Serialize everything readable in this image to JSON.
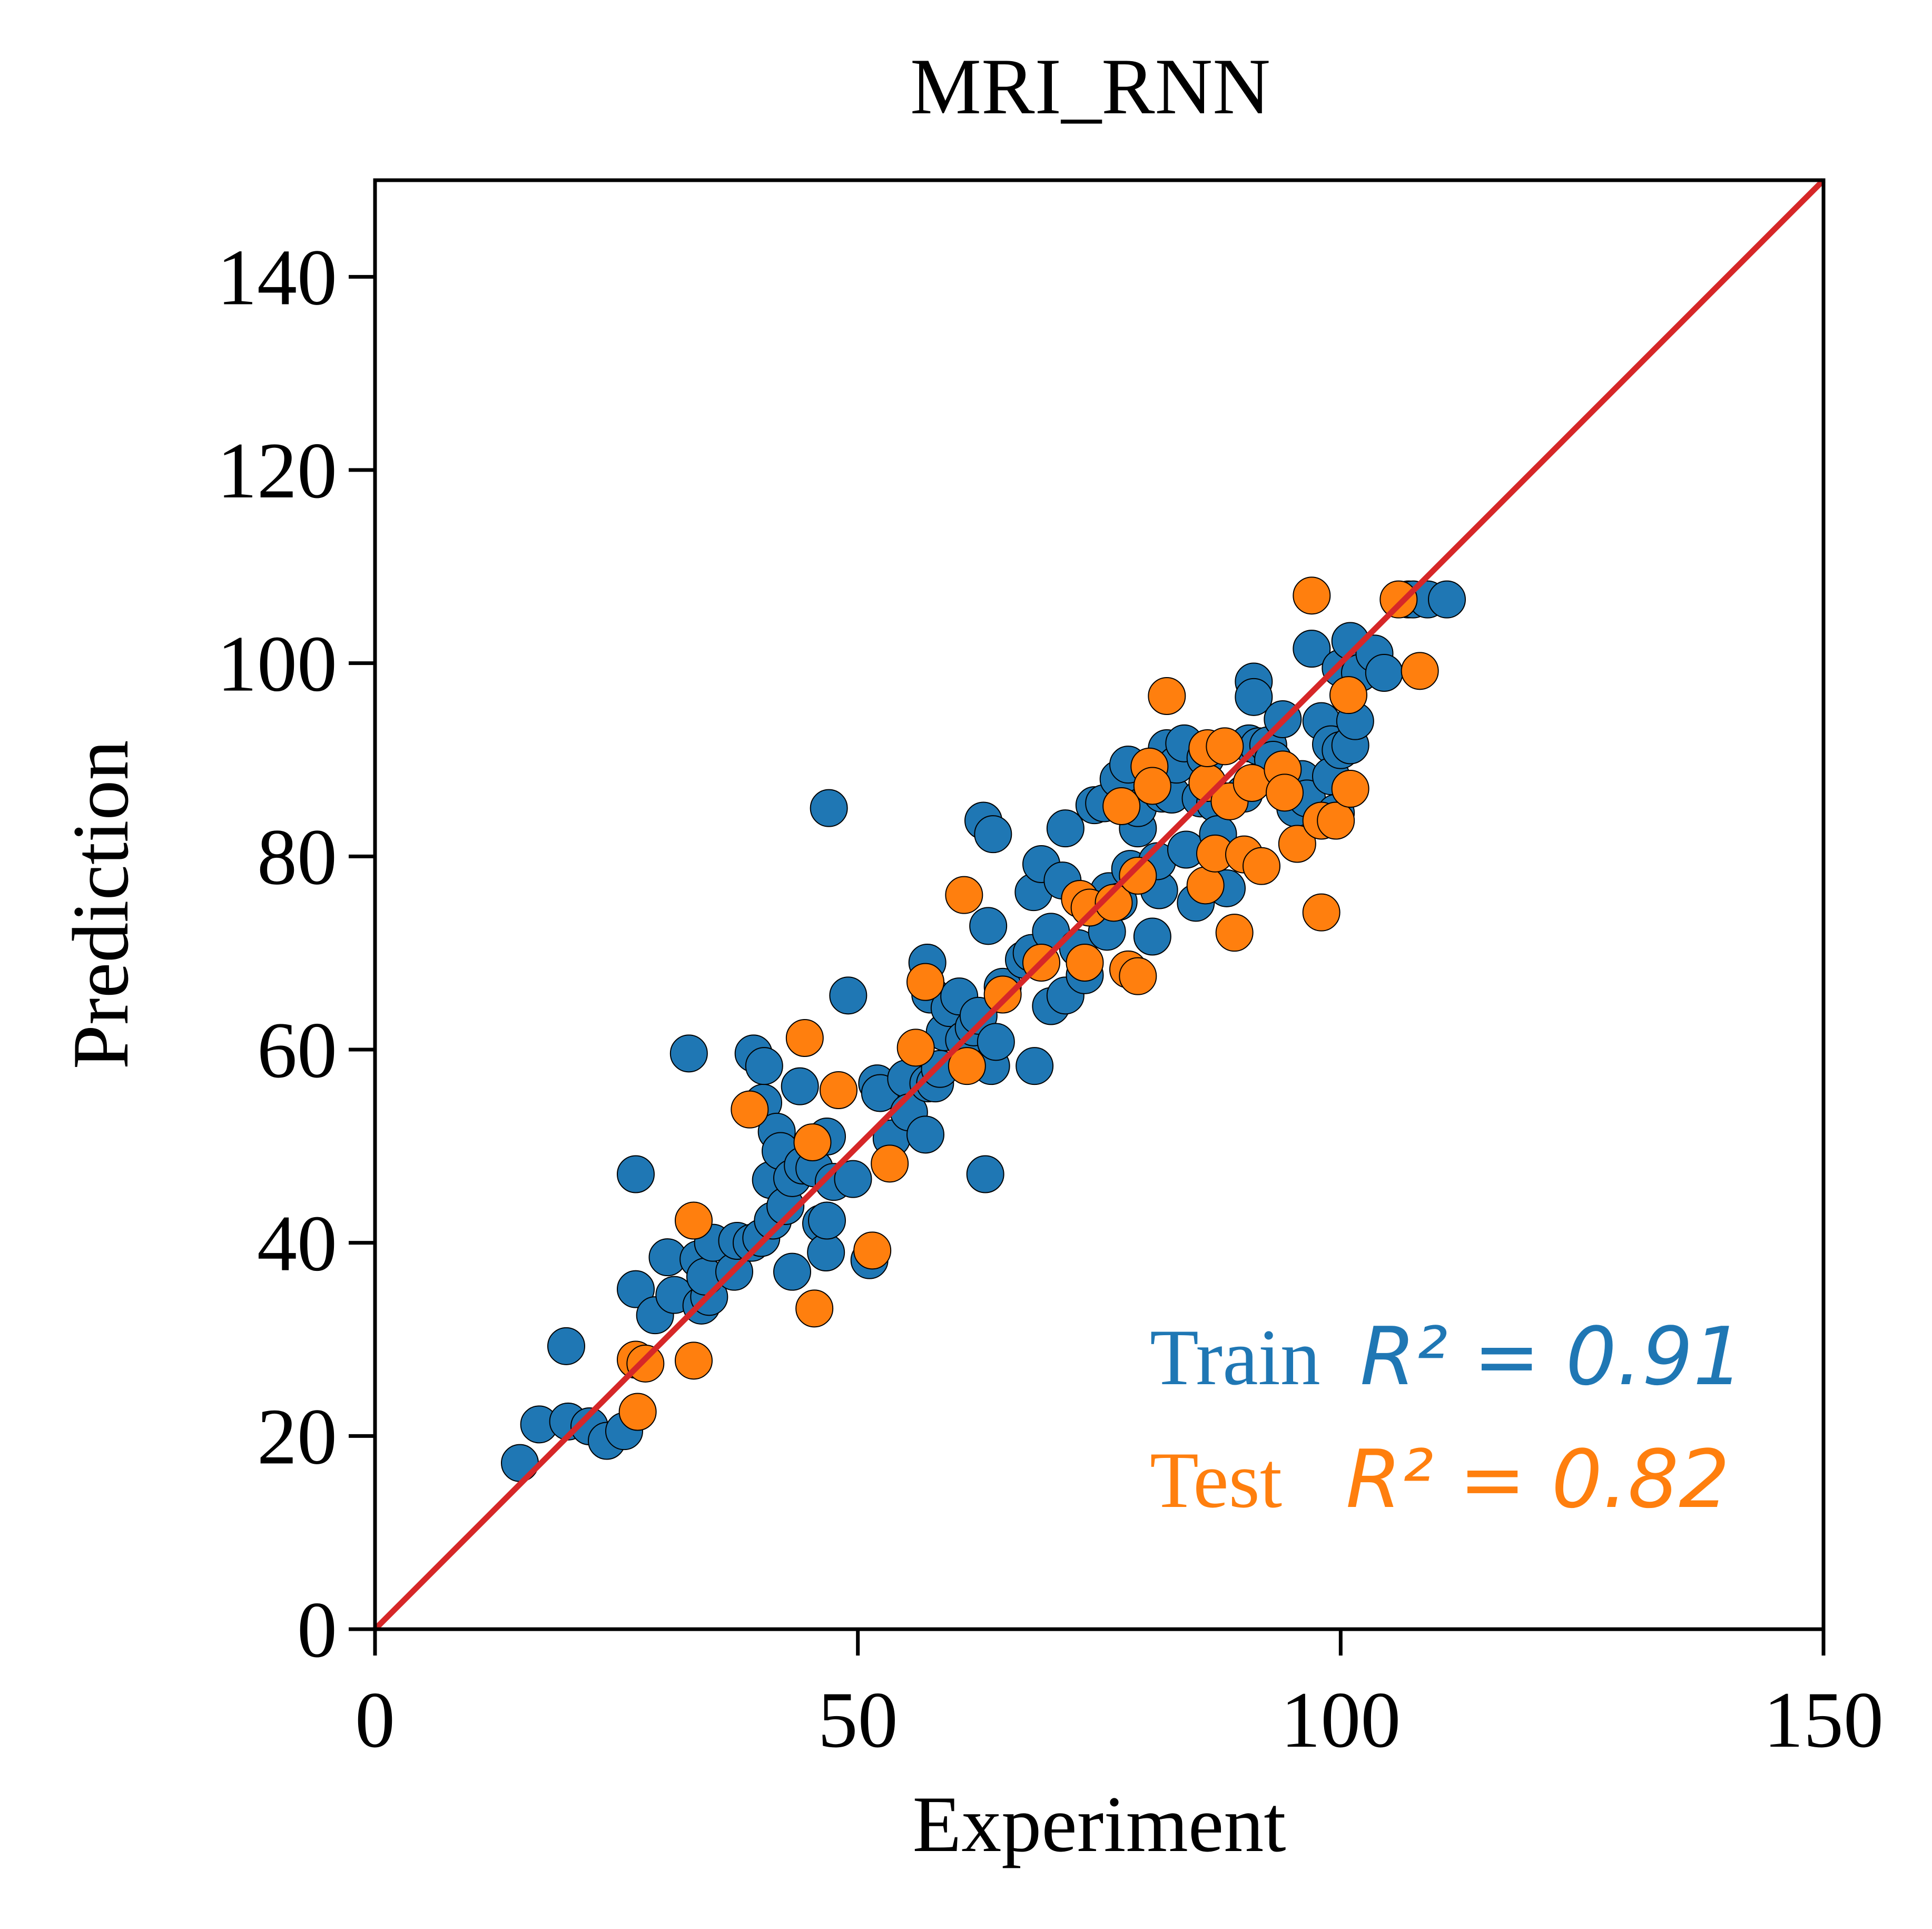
{
  "chart_data": {
    "type": "scatter",
    "title": "MRI_RNN",
    "xlabel": "Experiment",
    "ylabel": "Prediction",
    "xlim": [
      0,
      150
    ],
    "ylim": [
      0,
      150
    ],
    "xticks": [
      0,
      50,
      100,
      150
    ],
    "yticks": [
      0,
      20,
      40,
      60,
      80,
      100,
      120,
      140
    ],
    "grid": false,
    "reference_line": {
      "from": [
        0,
        0
      ],
      "to": [
        150,
        150
      ],
      "color": "#d62728"
    },
    "colors": {
      "train": "#1f77b4",
      "test": "#ff7f0e",
      "reference": "#d62728"
    },
    "annotations": {
      "train_label": "Train",
      "train_metric": "R² = 0.91",
      "test_label": "Test",
      "test_metric": "R² = 0.82"
    },
    "series": [
      {
        "color": "#1f77b4",
        "points": [
          [
            15,
            17.2
          ],
          [
            17,
            21.2
          ],
          [
            19.8,
            29.3
          ],
          [
            20,
            21.5
          ],
          [
            22.2,
            21
          ],
          [
            24,
            19.5
          ],
          [
            25.8,
            20.5
          ],
          [
            27,
            47.1
          ],
          [
            27,
            35.2
          ],
          [
            29,
            32.5
          ],
          [
            30.3,
            38.5
          ],
          [
            31,
            34.6
          ],
          [
            32.5,
            59.6
          ],
          [
            33.5,
            38.3
          ],
          [
            33.8,
            33.5
          ],
          [
            34.6,
            34.4
          ],
          [
            34.2,
            36.5
          ],
          [
            35,
            40
          ],
          [
            37.2,
            37
          ],
          [
            37.5,
            40.2
          ],
          [
            39,
            40
          ],
          [
            39.2,
            59.6
          ],
          [
            40,
            40.5
          ],
          [
            40.2,
            54.5
          ],
          [
            40.3,
            58.3
          ],
          [
            41,
            46.5
          ],
          [
            41.2,
            42.3
          ],
          [
            41.6,
            51.5
          ],
          [
            42,
            49.5
          ],
          [
            42.5,
            43.8
          ],
          [
            43.2,
            37
          ],
          [
            43.2,
            46.7
          ],
          [
            44,
            56.2
          ],
          [
            44.3,
            48
          ],
          [
            45.5,
            47.7
          ],
          [
            46.2,
            42
          ],
          [
            46.7,
            39
          ],
          [
            46.8,
            42.3
          ],
          [
            46.8,
            51
          ],
          [
            47,
            85
          ],
          [
            47.5,
            46.3
          ],
          [
            49,
            65.6
          ],
          [
            49.5,
            46.6
          ],
          [
            51.2,
            38.2
          ],
          [
            52,
            56.5
          ],
          [
            52.3,
            55.5
          ],
          [
            53.5,
            50.8
          ],
          [
            55,
            57
          ],
          [
            55.3,
            53.5
          ],
          [
            57,
            51.2
          ],
          [
            57.2,
            69
          ],
          [
            57.5,
            65.7
          ],
          [
            57.3,
            56.5
          ],
          [
            58,
            56.5
          ],
          [
            58.5,
            58
          ],
          [
            59,
            61.8
          ],
          [
            59.5,
            64.3
          ],
          [
            60.5,
            65.5
          ],
          [
            61,
            61
          ],
          [
            62,
            62.3
          ],
          [
            62.5,
            63.5
          ],
          [
            63,
            83.7
          ],
          [
            63.2,
            47.1
          ],
          [
            63.5,
            72.8
          ],
          [
            63.8,
            58.3
          ],
          [
            64,
            82.3
          ],
          [
            64.3,
            60.8
          ],
          [
            65,
            66.5
          ],
          [
            67.2,
            69.3
          ],
          [
            68,
            70
          ],
          [
            68.2,
            76.3
          ],
          [
            68.3,
            58.3
          ],
          [
            69,
            79.2
          ],
          [
            70,
            64.5
          ],
          [
            70,
            72.2
          ],
          [
            71.2,
            77.5
          ],
          [
            71.5,
            82.9
          ],
          [
            71.5,
            65.6
          ],
          [
            72.8,
            70.5
          ],
          [
            73.5,
            67.7
          ],
          [
            74.5,
            85.3
          ],
          [
            75.5,
            85.5
          ],
          [
            75.8,
            72.2
          ],
          [
            76,
            76.4
          ],
          [
            77,
            75.3
          ],
          [
            77,
            88
          ],
          [
            78,
            89.5
          ],
          [
            78.2,
            78.7
          ],
          [
            79,
            82.9
          ],
          [
            79,
            85
          ],
          [
            80.5,
            71.7
          ],
          [
            81.2,
            76.5
          ],
          [
            81,
            79.5
          ],
          [
            81.5,
            86.5
          ],
          [
            82,
            91.2
          ],
          [
            82.5,
            86.4
          ],
          [
            83,
            89.5
          ],
          [
            83.8,
            91.7
          ],
          [
            84,
            80.7
          ],
          [
            85,
            75.2
          ],
          [
            85.5,
            86
          ],
          [
            86,
            90.2
          ],
          [
            87,
            85.5
          ],
          [
            87.3,
            82.3
          ],
          [
            88.2,
            76.7
          ],
          [
            90,
            86.5
          ],
          [
            90.5,
            91.7
          ],
          [
            91,
            98.1
          ],
          [
            91,
            96.5
          ],
          [
            91.5,
            91.4
          ],
          [
            92.5,
            91.5
          ],
          [
            93,
            90
          ],
          [
            94,
            94.2
          ],
          [
            95.3,
            85
          ],
          [
            96,
            88
          ],
          [
            96.5,
            86
          ],
          [
            97,
            101.5
          ],
          [
            98,
            94
          ],
          [
            99,
            91.6
          ],
          [
            99,
            88.3
          ],
          [
            99.5,
            84.5
          ],
          [
            100,
            99.5
          ],
          [
            100,
            91
          ],
          [
            101,
            91.5
          ],
          [
            101,
            102.3
          ],
          [
            101.5,
            94
          ],
          [
            102,
            99
          ],
          [
            103.5,
            101
          ],
          [
            104.5,
            99
          ],
          [
            107,
            106.6
          ],
          [
            107.5,
            106.6
          ],
          [
            109,
            106.6
          ],
          [
            111,
            106.6
          ]
        ]
      },
      {
        "color": "#ff7f0e",
        "points": [
          [
            27,
            27.9
          ],
          [
            27.2,
            22.5
          ],
          [
            28,
            27.5
          ],
          [
            33,
            42.3
          ],
          [
            33,
            27.8
          ],
          [
            38.8,
            53.8
          ],
          [
            44.5,
            61.2
          ],
          [
            45.3,
            50.4
          ],
          [
            45.5,
            33.2
          ],
          [
            48,
            55.8
          ],
          [
            51.5,
            39.2
          ],
          [
            53.3,
            48.2
          ],
          [
            56,
            60.2
          ],
          [
            57,
            67
          ],
          [
            61,
            76
          ],
          [
            61.3,
            58.3
          ],
          [
            65,
            65.7
          ],
          [
            69,
            69
          ],
          [
            73,
            75.6
          ],
          [
            73.5,
            69
          ],
          [
            74,
            74.7
          ],
          [
            76.5,
            75.2
          ],
          [
            77.3,
            85.2
          ],
          [
            78,
            68.3
          ],
          [
            79,
            67.6
          ],
          [
            79,
            78
          ],
          [
            80.2,
            89.3
          ],
          [
            80.5,
            87.3
          ],
          [
            82,
            96.6
          ],
          [
            86,
            77
          ],
          [
            86.2,
            87.6
          ],
          [
            86.2,
            91.2
          ],
          [
            87,
            80.3
          ],
          [
            88,
            91.4
          ],
          [
            88.5,
            85.7
          ],
          [
            89,
            72.1
          ],
          [
            90,
            80.2
          ],
          [
            90.8,
            87.6
          ],
          [
            91.8,
            79
          ],
          [
            94,
            89
          ],
          [
            94.2,
            86.6
          ],
          [
            95.5,
            81.3
          ],
          [
            97,
            107
          ],
          [
            98,
            74.2
          ],
          [
            98,
            83.7
          ],
          [
            99.5,
            83.7
          ],
          [
            100.8,
            96.7
          ],
          [
            101,
            87
          ],
          [
            106,
            106.6
          ],
          [
            108.2,
            99.2
          ]
        ]
      }
    ]
  }
}
